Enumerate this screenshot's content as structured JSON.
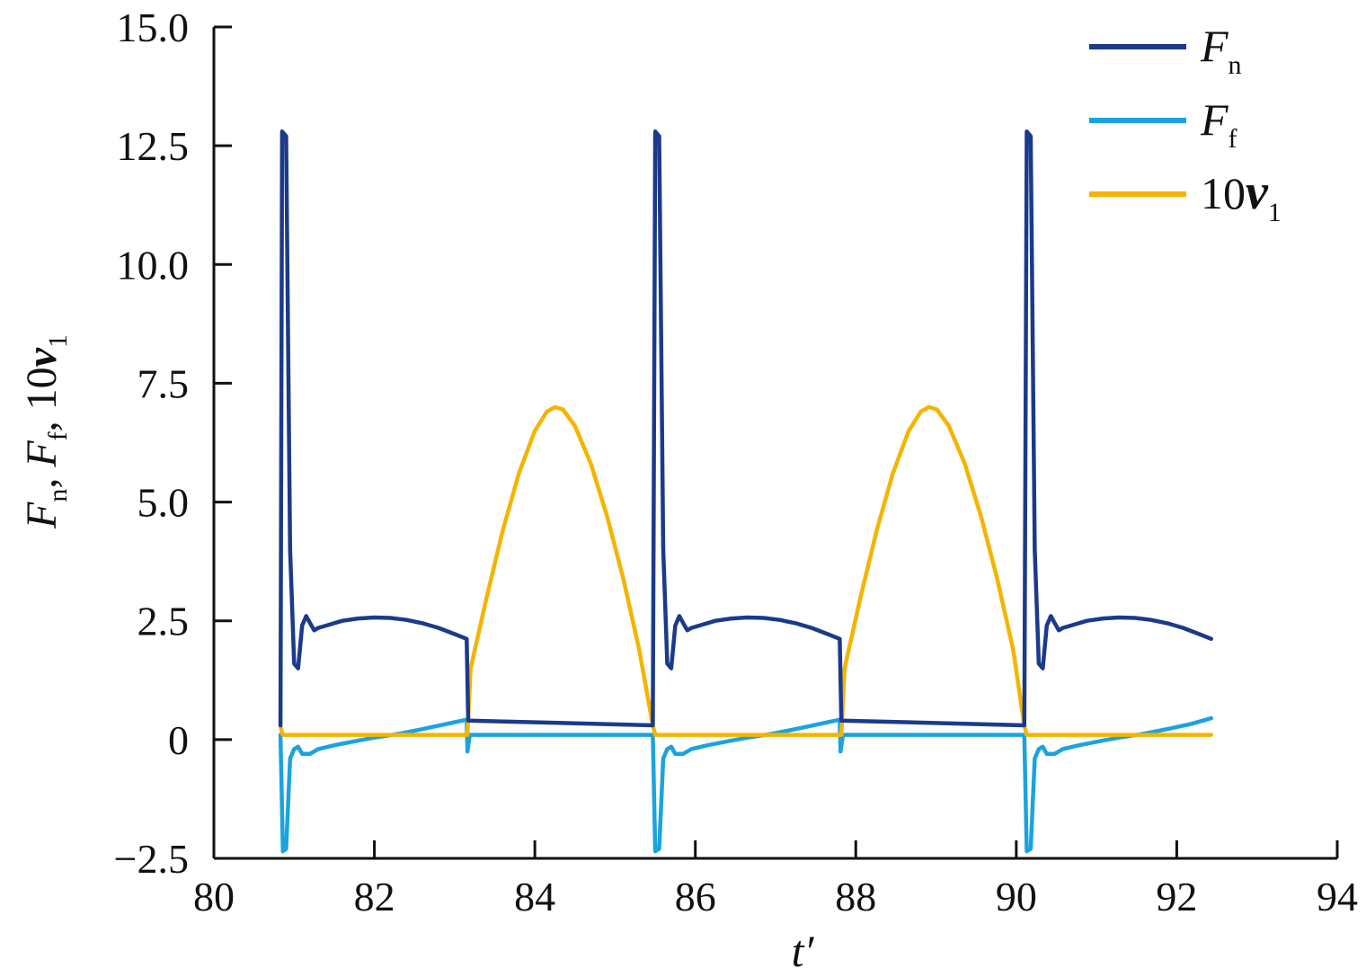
{
  "chart_data": {
    "type": "line",
    "xlabel": "t′",
    "ylabel": {
      "parts": [
        {
          "text": "F",
          "italic": true
        },
        {
          "text": "n",
          "sub": true
        },
        {
          "text": ", "
        },
        {
          "text": "F",
          "italic": true
        },
        {
          "text": "f",
          "sub": true
        },
        {
          "text": ", 10"
        },
        {
          "text": "v",
          "italic": true,
          "bold": true
        },
        {
          "text": "1",
          "sub": true
        }
      ]
    },
    "xlim": [
      80,
      94
    ],
    "ylim": [
      -2.5,
      15.0
    ],
    "x_ticks": [
      80,
      82,
      84,
      86,
      88,
      90,
      92,
      94
    ],
    "x_tick_labels": [
      "80",
      "82",
      "84",
      "86",
      "88",
      "90",
      "92",
      "94"
    ],
    "y_ticks": [
      -2.5,
      0,
      2.5,
      5.0,
      7.5,
      10.0,
      12.5,
      15.0
    ],
    "y_tick_labels": [
      "−2.5",
      "0",
      "2.5",
      "5.0",
      "7.5",
      "10.0",
      "12.5",
      "15.0"
    ],
    "grid": false,
    "legend_position": "top-right",
    "series": [
      {
        "name": "F_n",
        "label_main": "F",
        "label_sub": "n",
        "color": "#1b3a8c",
        "points": [
          [
            80.83,
            0.3
          ],
          [
            80.85,
            12.8
          ],
          [
            80.9,
            12.7
          ],
          [
            80.95,
            4.0
          ],
          [
            81.0,
            1.6
          ],
          [
            81.05,
            1.5
          ],
          [
            81.1,
            2.4
          ],
          [
            81.15,
            2.6
          ],
          [
            81.2,
            2.45
          ],
          [
            81.25,
            2.3
          ],
          [
            81.3,
            2.35
          ],
          [
            81.4,
            2.4
          ],
          [
            81.6,
            2.5
          ],
          [
            81.8,
            2.55
          ],
          [
            82.0,
            2.57
          ],
          [
            82.2,
            2.56
          ],
          [
            82.4,
            2.52
          ],
          [
            82.6,
            2.45
          ],
          [
            82.8,
            2.35
          ],
          [
            83.0,
            2.22
          ],
          [
            83.15,
            2.12
          ],
          [
            83.17,
            0.4
          ],
          [
            85.47,
            0.3
          ],
          [
            85.5,
            12.8
          ],
          [
            85.55,
            12.7
          ],
          [
            85.6,
            4.0
          ],
          [
            85.65,
            1.6
          ],
          [
            85.7,
            1.5
          ],
          [
            85.75,
            2.4
          ],
          [
            85.8,
            2.6
          ],
          [
            85.85,
            2.45
          ],
          [
            85.9,
            2.3
          ],
          [
            85.95,
            2.35
          ],
          [
            86.05,
            2.4
          ],
          [
            86.25,
            2.5
          ],
          [
            86.45,
            2.55
          ],
          [
            86.65,
            2.57
          ],
          [
            86.85,
            2.56
          ],
          [
            87.05,
            2.52
          ],
          [
            87.25,
            2.45
          ],
          [
            87.45,
            2.35
          ],
          [
            87.65,
            2.22
          ],
          [
            87.8,
            2.12
          ],
          [
            87.82,
            0.4
          ],
          [
            90.1,
            0.3
          ],
          [
            90.13,
            12.8
          ],
          [
            90.18,
            12.7
          ],
          [
            90.23,
            4.0
          ],
          [
            90.28,
            1.6
          ],
          [
            90.33,
            1.5
          ],
          [
            90.38,
            2.4
          ],
          [
            90.43,
            2.6
          ],
          [
            90.48,
            2.45
          ],
          [
            90.53,
            2.3
          ],
          [
            90.58,
            2.35
          ],
          [
            90.68,
            2.4
          ],
          [
            90.88,
            2.5
          ],
          [
            91.08,
            2.55
          ],
          [
            91.28,
            2.57
          ],
          [
            91.48,
            2.56
          ],
          [
            91.68,
            2.52
          ],
          [
            91.88,
            2.45
          ],
          [
            92.08,
            2.35
          ],
          [
            92.28,
            2.22
          ],
          [
            92.43,
            2.12
          ]
        ]
      },
      {
        "name": "F_f",
        "label_main": "F",
        "label_sub": "f",
        "color": "#1aa3e0",
        "points": [
          [
            80.83,
            0.1
          ],
          [
            80.86,
            -2.35
          ],
          [
            80.9,
            -2.3
          ],
          [
            80.95,
            -0.4
          ],
          [
            81.0,
            -0.2
          ],
          [
            81.05,
            -0.15
          ],
          [
            81.1,
            -0.3
          ],
          [
            81.2,
            -0.3
          ],
          [
            81.3,
            -0.2
          ],
          [
            81.5,
            -0.12
          ],
          [
            81.8,
            -0.02
          ],
          [
            82.0,
            0.04
          ],
          [
            82.3,
            0.12
          ],
          [
            82.6,
            0.22
          ],
          [
            82.9,
            0.33
          ],
          [
            83.15,
            0.42
          ],
          [
            83.16,
            -0.25
          ],
          [
            83.19,
            0.1
          ],
          [
            85.47,
            0.1
          ],
          [
            85.5,
            -2.35
          ],
          [
            85.55,
            -2.3
          ],
          [
            85.6,
            -0.4
          ],
          [
            85.65,
            -0.2
          ],
          [
            85.7,
            -0.15
          ],
          [
            85.75,
            -0.3
          ],
          [
            85.85,
            -0.3
          ],
          [
            85.95,
            -0.2
          ],
          [
            86.15,
            -0.12
          ],
          [
            86.45,
            -0.02
          ],
          [
            86.65,
            0.04
          ],
          [
            86.95,
            0.12
          ],
          [
            87.25,
            0.22
          ],
          [
            87.55,
            0.33
          ],
          [
            87.8,
            0.42
          ],
          [
            87.81,
            -0.25
          ],
          [
            87.84,
            0.1
          ],
          [
            90.1,
            0.1
          ],
          [
            90.13,
            -2.35
          ],
          [
            90.18,
            -2.3
          ],
          [
            90.23,
            -0.4
          ],
          [
            90.28,
            -0.2
          ],
          [
            90.33,
            -0.15
          ],
          [
            90.38,
            -0.3
          ],
          [
            90.48,
            -0.3
          ],
          [
            90.58,
            -0.2
          ],
          [
            90.78,
            -0.12
          ],
          [
            91.08,
            -0.02
          ],
          [
            91.28,
            0.04
          ],
          [
            91.58,
            0.12
          ],
          [
            91.88,
            0.22
          ],
          [
            92.18,
            0.33
          ],
          [
            92.43,
            0.45
          ]
        ]
      },
      {
        "name": "10v_1",
        "label_main": "10",
        "label_bold": "v",
        "label_sub": "1",
        "color": "#f5b400",
        "points": [
          [
            80.83,
            0.28
          ],
          [
            80.86,
            0.1
          ],
          [
            83.16,
            0.1
          ],
          [
            83.18,
            0.8
          ],
          [
            83.2,
            1.5
          ],
          [
            83.4,
            3.0
          ],
          [
            83.6,
            4.4
          ],
          [
            83.8,
            5.6
          ],
          [
            84.0,
            6.5
          ],
          [
            84.15,
            6.9
          ],
          [
            84.25,
            7.0
          ],
          [
            84.35,
            6.95
          ],
          [
            84.5,
            6.6
          ],
          [
            84.7,
            5.8
          ],
          [
            84.9,
            4.7
          ],
          [
            85.1,
            3.4
          ],
          [
            85.3,
            1.9
          ],
          [
            85.47,
            0.3
          ],
          [
            85.5,
            0.1
          ],
          [
            87.82,
            0.1
          ],
          [
            87.84,
            0.8
          ],
          [
            87.86,
            1.5
          ],
          [
            88.06,
            3.0
          ],
          [
            88.26,
            4.4
          ],
          [
            88.46,
            5.6
          ],
          [
            88.66,
            6.5
          ],
          [
            88.81,
            6.9
          ],
          [
            88.91,
            7.0
          ],
          [
            89.01,
            6.95
          ],
          [
            89.16,
            6.6
          ],
          [
            89.36,
            5.8
          ],
          [
            89.56,
            4.7
          ],
          [
            89.76,
            3.4
          ],
          [
            89.96,
            1.9
          ],
          [
            90.1,
            0.3
          ],
          [
            90.13,
            0.1
          ],
          [
            92.43,
            0.1
          ]
        ]
      }
    ]
  }
}
